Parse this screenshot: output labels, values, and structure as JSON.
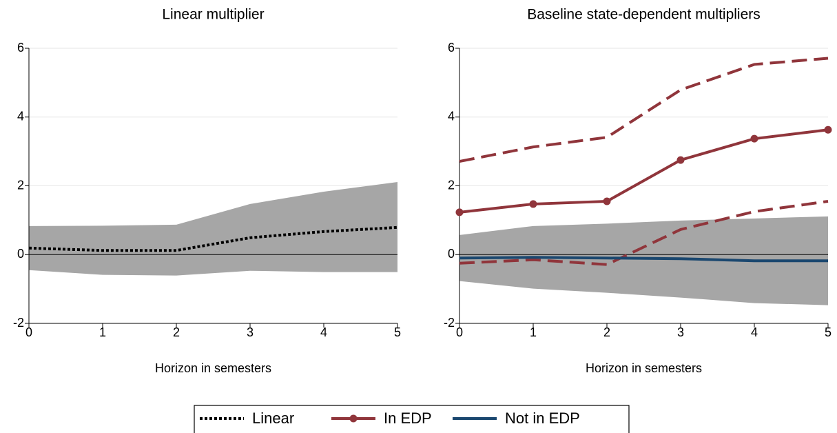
{
  "chart_data": [
    {
      "type": "line",
      "title": "Linear multiplier",
      "xlabel": "Horizon in semesters",
      "x": [
        0,
        1,
        2,
        3,
        4,
        5
      ],
      "xlim": [
        0,
        5
      ],
      "xticks": [
        0,
        1,
        2,
        3,
        4,
        5
      ],
      "ylim": [
        -2,
        6
      ],
      "yticks": [
        -2,
        0,
        2,
        4,
        6
      ],
      "grid": true,
      "reference_line": 0,
      "band_upper": [
        0.83,
        0.84,
        0.87,
        1.47,
        1.83,
        2.11
      ],
      "band_lower": [
        -0.45,
        -0.59,
        -0.61,
        -0.47,
        -0.51,
        -0.51
      ],
      "band_color": "#a6a6a6",
      "series": [
        {
          "name": "Linear",
          "color": "#000000",
          "style": "dotted",
          "markers": false,
          "values": [
            0.19,
            0.12,
            0.12,
            0.49,
            0.67,
            0.79
          ]
        }
      ]
    },
    {
      "type": "line",
      "title": "Baseline state-dependent multipliers",
      "xlabel": "Horizon in semesters",
      "x": [
        0,
        1,
        2,
        3,
        4,
        5
      ],
      "xlim": [
        0,
        5
      ],
      "xticks": [
        0,
        1,
        2,
        3,
        4,
        5
      ],
      "ylim": [
        -2,
        6
      ],
      "yticks": [
        -2,
        0,
        2,
        4,
        6
      ],
      "grid": true,
      "reference_line": 0,
      "band_upper": [
        0.57,
        0.83,
        0.9,
        0.99,
        1.05,
        1.11
      ],
      "band_lower": [
        -0.77,
        -0.99,
        -1.11,
        -1.25,
        -1.41,
        -1.47
      ],
      "band_color": "#a6a6a6",
      "series": [
        {
          "name": "In EDP",
          "color": "#90353b",
          "style": "solid",
          "markers": true,
          "values": [
            1.23,
            1.47,
            1.55,
            2.75,
            3.37,
            3.63
          ],
          "upper": [
            2.71,
            3.13,
            3.41,
            4.79,
            5.53,
            5.71
          ],
          "lower": [
            -0.25,
            -0.15,
            -0.29,
            0.73,
            1.25,
            1.55
          ]
        },
        {
          "name": "Not in EDP",
          "color": "#1a476f",
          "style": "solid",
          "markers": false,
          "values": [
            -0.1,
            -0.08,
            -0.1,
            -0.12,
            -0.18,
            -0.18
          ]
        }
      ]
    }
  ]
}
